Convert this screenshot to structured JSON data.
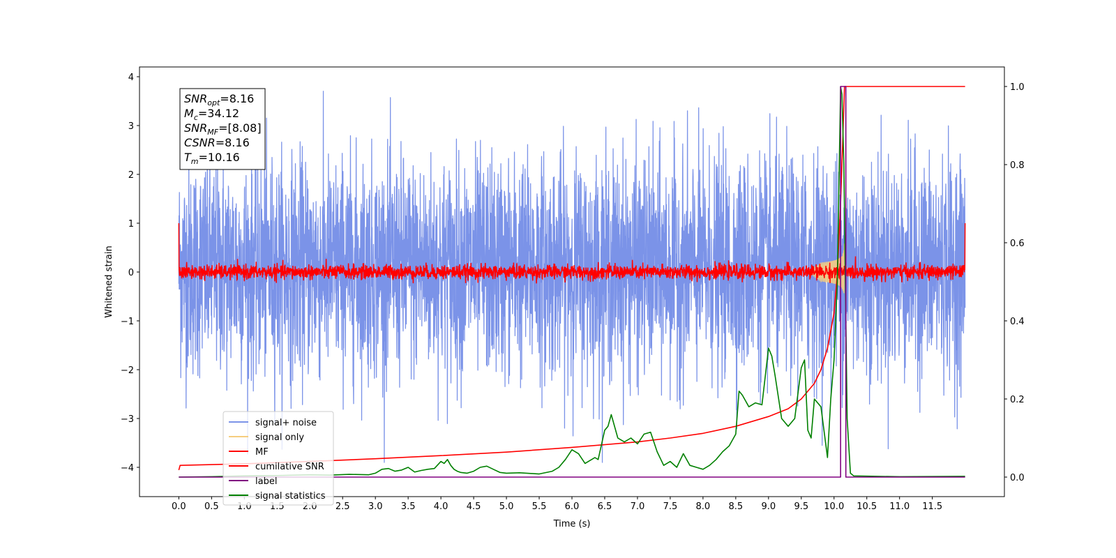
{
  "chart_data": {
    "type": "line",
    "xlabel": "Time (s)",
    "ylabel": "Whitened strain",
    "xlim": [
      -0.6,
      12.6
    ],
    "ylim": [
      -4.6,
      4.2
    ],
    "y2lim": [
      -0.05,
      1.05
    ],
    "x_ticks": [
      "0.0",
      "0.5",
      "1.0",
      "1.5",
      "2.0",
      "2.5",
      "3.0",
      "3.5",
      "4.0",
      "4.5",
      "5.0",
      "5.5",
      "6.0",
      "6.5",
      "7.0",
      "7.5",
      "8.0",
      "8.5",
      "9.0",
      "9.5",
      "10.0",
      "10.5",
      "11.0",
      "11.5"
    ],
    "y_ticks": [
      "4",
      "3",
      "2",
      "1",
      "0",
      "−1",
      "−2",
      "−3",
      "−4"
    ],
    "y2_ticks": [
      "1.0",
      "0.8",
      "0.6",
      "0.4",
      "0.2",
      "0.0"
    ],
    "annotation": {
      "lines": [
        {
          "base": "SNR",
          "sub": "opt",
          "rest": "=8.16"
        },
        {
          "base": "M",
          "sub": "c",
          "rest": "=34.12"
        },
        {
          "base": "SNR",
          "sub": "MF",
          "rest": "=[8.08]"
        },
        {
          "base": "CSNR",
          "sub": "",
          "rest": "=8.16"
        },
        {
          "base": "T",
          "sub": "m",
          "rest": "=10.16"
        }
      ]
    },
    "legend": {
      "placement": "lower-left",
      "entries": [
        {
          "label": "signal+ noise",
          "color": "#7b93e8"
        },
        {
          "label": "signal only",
          "color": "#f6cd7f"
        },
        {
          "label": "MF",
          "color": "#ff0000"
        },
        {
          "label": "cumilative SNR",
          "color": "#ff0000"
        },
        {
          "label": "label",
          "color": "#800080"
        },
        {
          "label": "signal statistics",
          "color": "#008000"
        }
      ]
    },
    "series": [
      {
        "name": "signal+ noise",
        "axis": "left",
        "style": "noise band",
        "color": "#7b93e8",
        "x_range": [
          0.0,
          12.0
        ],
        "typical_range": [
          -1.9,
          2.1
        ],
        "extreme_range": [
          -3.9,
          3.85
        ]
      },
      {
        "name": "signal only",
        "axis": "left",
        "style": "chirp",
        "color": "#f6cd7f",
        "x_range": [
          9.6,
          10.25
        ],
        "peak_amplitude": 0.6,
        "merger_time": 10.16
      },
      {
        "name": "MF",
        "axis": "left",
        "style": "noise band",
        "color": "#ff0000",
        "x_range": [
          0.0,
          12.0
        ],
        "typical_range": [
          -0.15,
          0.15
        ],
        "edge_values": [
          1.0,
          1.0
        ]
      },
      {
        "name": "cumilative SNR",
        "axis": "right",
        "color": "#ff0000",
        "x": [
          0.0,
          0.02,
          1.0,
          2.0,
          3.0,
          4.0,
          5.0,
          6.0,
          7.0,
          7.5,
          8.0,
          8.5,
          9.0,
          9.3,
          9.5,
          9.7,
          9.8,
          9.9,
          10.0,
          10.05,
          10.1,
          10.14,
          10.16,
          10.2,
          11.0,
          12.0
        ],
        "y": [
          0.018,
          0.03,
          0.034,
          0.04,
          0.047,
          0.055,
          0.064,
          0.076,
          0.09,
          0.1,
          0.112,
          0.13,
          0.155,
          0.175,
          0.2,
          0.24,
          0.275,
          0.33,
          0.42,
          0.52,
          0.7,
          0.9,
          1.0,
          1.0,
          1.0,
          1.0
        ]
      },
      {
        "name": "label",
        "axis": "right",
        "color": "#800080",
        "x": [
          0.0,
          10.1,
          10.1,
          10.18,
          10.18,
          12.0
        ],
        "y": [
          0.0,
          0.0,
          1.0,
          1.0,
          0.0,
          0.0
        ]
      },
      {
        "name": "signal statistics",
        "axis": "right",
        "color": "#008000",
        "x": [
          0.0,
          0.5,
          1.0,
          1.5,
          2.0,
          2.3,
          2.6,
          2.9,
          3.0,
          3.1,
          3.2,
          3.3,
          3.4,
          3.5,
          3.6,
          3.7,
          3.8,
          3.9,
          4.0,
          4.05,
          4.1,
          4.15,
          4.2,
          4.25,
          4.3,
          4.4,
          4.5,
          4.6,
          4.7,
          4.8,
          4.9,
          5.0,
          5.2,
          5.5,
          5.7,
          5.8,
          5.9,
          6.0,
          6.1,
          6.2,
          6.3,
          6.35,
          6.4,
          6.5,
          6.55,
          6.6,
          6.7,
          6.8,
          6.9,
          7.0,
          7.1,
          7.2,
          7.3,
          7.4,
          7.5,
          7.6,
          7.7,
          7.8,
          7.9,
          8.0,
          8.1,
          8.2,
          8.3,
          8.4,
          8.5,
          8.55,
          8.6,
          8.7,
          8.8,
          8.9,
          9.0,
          9.05,
          9.1,
          9.2,
          9.3,
          9.4,
          9.5,
          9.55,
          9.6,
          9.65,
          9.7,
          9.8,
          9.9,
          9.95,
          10.0,
          10.05,
          10.1,
          10.12,
          10.15,
          10.2,
          10.25,
          10.3,
          11.0,
          12.0
        ],
        "y": [
          0.0,
          0.001,
          0.003,
          0.004,
          0.006,
          0.005,
          0.007,
          0.006,
          0.01,
          0.02,
          0.022,
          0.015,
          0.018,
          0.025,
          0.013,
          0.017,
          0.02,
          0.022,
          0.04,
          0.035,
          0.045,
          0.03,
          0.02,
          0.015,
          0.012,
          0.01,
          0.015,
          0.025,
          0.028,
          0.02,
          0.012,
          0.01,
          0.011,
          0.008,
          0.015,
          0.025,
          0.045,
          0.07,
          0.06,
          0.035,
          0.045,
          0.05,
          0.045,
          0.12,
          0.13,
          0.16,
          0.1,
          0.09,
          0.1,
          0.085,
          0.11,
          0.115,
          0.065,
          0.03,
          0.04,
          0.025,
          0.06,
          0.03,
          0.025,
          0.02,
          0.03,
          0.045,
          0.065,
          0.08,
          0.11,
          0.22,
          0.21,
          0.18,
          0.19,
          0.185,
          0.33,
          0.31,
          0.26,
          0.15,
          0.13,
          0.15,
          0.28,
          0.3,
          0.12,
          0.1,
          0.2,
          0.18,
          0.05,
          0.2,
          0.3,
          0.5,
          1.0,
          0.98,
          0.8,
          0.15,
          0.01,
          0.003,
          0.001,
          0.002
        ]
      }
    ]
  }
}
